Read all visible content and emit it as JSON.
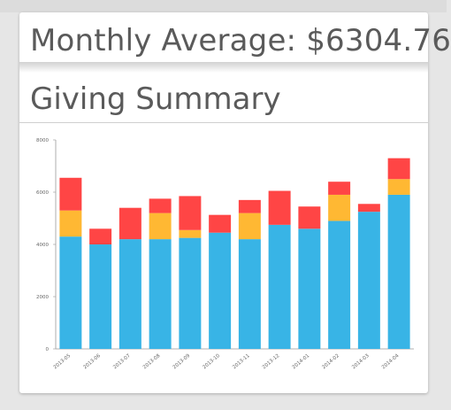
{
  "header": {
    "average_label": "Monthly Average: $6304.76"
  },
  "section": {
    "title": "Giving Summary"
  },
  "colors": {
    "base": "#38b4e6",
    "middle": "#ffb833",
    "top": "#ff4545",
    "axis": "#999999"
  },
  "chart_data": {
    "type": "bar",
    "stacked": true,
    "categories": [
      "2013-05",
      "2013-06",
      "2013-07",
      "2013-08",
      "2013-09",
      "2013-10",
      "2013-11",
      "2013-12",
      "2014-01",
      "2014-02",
      "2014-03",
      "2014-04"
    ],
    "series": [
      {
        "values": [
          4300,
          4000,
          4200,
          4200,
          4250,
          4450,
          4200,
          4750,
          4600,
          4900,
          5250,
          5900
        ]
      },
      {
        "values": [
          1000,
          0,
          0,
          1000,
          300,
          0,
          1000,
          0,
          0,
          1000,
          0,
          600
        ]
      },
      {
        "values": [
          1250,
          600,
          1200,
          550,
          1300,
          680,
          500,
          1300,
          850,
          500,
          300,
          800
        ]
      }
    ],
    "ylim": [
      0,
      8000
    ],
    "yticks": [
      0,
      2000,
      4000,
      6000,
      8000
    ],
    "grid": false
  }
}
